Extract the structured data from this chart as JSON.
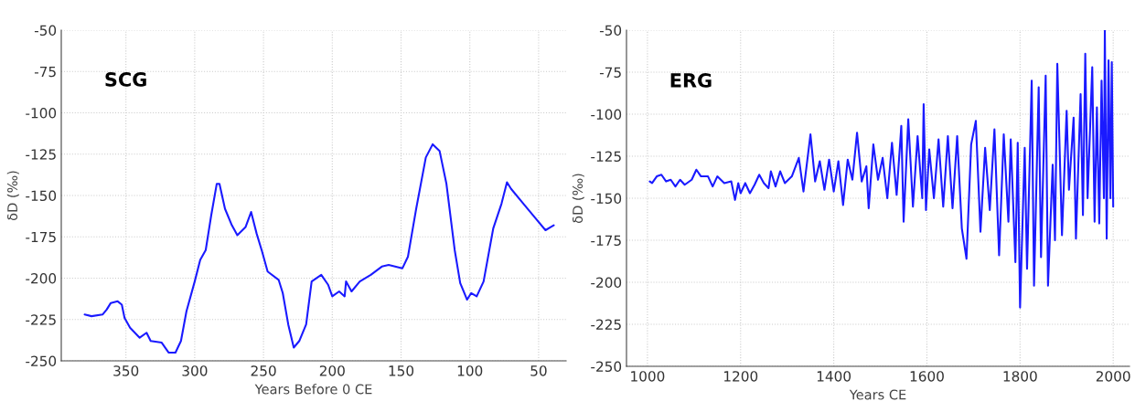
{
  "chart_data": [
    {
      "type": "line",
      "xlabel": "Years Before 0 CE",
      "ylabel": "δD (‰)",
      "annotations": [
        "SCG"
      ],
      "xlim": [
        397,
        30
      ],
      "xticks": [
        350,
        300,
        250,
        200,
        150,
        100,
        50
      ],
      "ylim": [
        -250,
        -50
      ],
      "yticks": [
        -250,
        -225,
        -200,
        -175,
        -150,
        -125,
        -100,
        -75,
        -50
      ],
      "grid": true,
      "legend": false,
      "marker": "none",
      "line_style": "solid",
      "series": [
        {
          "color": "#1a1aff",
          "x": [
            380,
            375,
            367,
            364,
            361,
            356,
            353,
            351,
            347,
            340,
            335,
            332,
            324,
            319,
            314,
            310,
            306,
            300,
            296,
            292,
            288,
            284,
            282,
            278,
            273,
            269,
            263,
            259,
            255,
            251,
            247,
            239,
            236,
            232,
            228,
            224,
            219,
            215,
            208,
            203,
            200,
            195,
            191,
            190,
            186,
            180,
            172,
            164,
            159,
            149,
            145,
            139,
            132,
            127,
            122,
            117,
            111,
            107,
            102,
            99,
            95,
            90,
            83,
            77,
            73,
            70,
            61,
            52,
            45,
            41,
            39
          ],
          "values": [
            -222,
            -223,
            -222,
            -219,
            -215,
            -214,
            -216,
            -224,
            -230,
            -236,
            -233,
            -238,
            -239,
            -245,
            -245,
            -238,
            -220,
            -202,
            -189,
            -183,
            -162,
            -143,
            -143,
            -158,
            -168,
            -174,
            -169,
            -160,
            -173,
            -184,
            -196,
            -201,
            -209,
            -228,
            -242,
            -238,
            -228,
            -202,
            -198,
            -204,
            -211,
            -208,
            -211,
            -202,
            -208,
            -202,
            -198,
            -193,
            -192,
            -194,
            -187,
            -158,
            -127,
            -119,
            -123,
            -143,
            -183,
            -203,
            -213,
            -209,
            -211,
            -202,
            -170,
            -155,
            -142,
            -146,
            -155,
            -164,
            -171,
            -169,
            -168
          ]
        }
      ]
    },
    {
      "type": "line",
      "xlabel": "Years CE",
      "ylabel": "δD (‰)",
      "annotations": [
        "ERG"
      ],
      "xlim": [
        955,
        2035
      ],
      "xticks": [
        1000,
        1200,
        1400,
        1600,
        1800,
        2000
      ],
      "ylim": [
        -250,
        -50
      ],
      "yticks": [
        -250,
        -225,
        -200,
        -175,
        -150,
        -125,
        -100,
        -75,
        -50
      ],
      "grid": true,
      "legend": false,
      "marker": "none",
      "line_style": "solid",
      "series": [
        {
          "color": "#1a1aff",
          "x": [
            1005,
            1010,
            1020,
            1030,
            1040,
            1050,
            1060,
            1070,
            1080,
            1095,
            1105,
            1115,
            1130,
            1140,
            1150,
            1165,
            1180,
            1188,
            1195,
            1200,
            1210,
            1220,
            1230,
            1240,
            1250,
            1260,
            1265,
            1275,
            1285,
            1295,
            1310,
            1325,
            1335,
            1350,
            1360,
            1370,
            1380,
            1390,
            1400,
            1410,
            1420,
            1430,
            1440,
            1450,
            1460,
            1470,
            1475,
            1485,
            1495,
            1505,
            1515,
            1525,
            1535,
            1545,
            1550,
            1560,
            1570,
            1580,
            1590,
            1593,
            1598,
            1605,
            1615,
            1625,
            1635,
            1645,
            1655,
            1665,
            1675,
            1685,
            1695,
            1705,
            1715,
            1725,
            1735,
            1745,
            1755,
            1765,
            1775,
            1780,
            1790,
            1795,
            1800,
            1810,
            1815,
            1825,
            1830,
            1840,
            1845,
            1855,
            1860,
            1870,
            1875,
            1880,
            1890,
            1900,
            1905,
            1915,
            1920,
            1930,
            1935,
            1940,
            1945,
            1955,
            1960,
            1965,
            1970,
            1975,
            1980,
            1982,
            1986,
            1990,
            1994,
            1997,
            2000
          ],
          "values": [
            -140,
            -141,
            -137,
            -136,
            -140,
            -139,
            -143,
            -139,
            -142,
            -139,
            -133,
            -137,
            -137,
            -143,
            -137,
            -141,
            -140,
            -151,
            -141,
            -147,
            -141,
            -147,
            -142,
            -136,
            -141,
            -144,
            -134,
            -143,
            -134,
            -141,
            -137,
            -126,
            -146,
            -112,
            -140,
            -128,
            -145,
            -127,
            -146,
            -128,
            -154,
            -127,
            -139,
            -111,
            -140,
            -131,
            -156,
            -118,
            -139,
            -126,
            -150,
            -117,
            -148,
            -107,
            -164,
            -103,
            -155,
            -113,
            -150,
            -94,
            -157,
            -121,
            -150,
            -115,
            -155,
            -113,
            -156,
            -113,
            -168,
            -186,
            -118,
            -104,
            -170,
            -120,
            -157,
            -109,
            -184,
            -112,
            -164,
            -115,
            -188,
            -117,
            -215,
            -120,
            -192,
            -80,
            -202,
            -84,
            -185,
            -77,
            -202,
            -130,
            -175,
            -70,
            -172,
            -98,
            -145,
            -102,
            -174,
            -88,
            -160,
            -64,
            -150,
            -72,
            -164,
            -96,
            -165,
            -80,
            -150,
            -50,
            -174,
            -68,
            -150,
            -69,
            -155
          ]
        }
      ]
    }
  ]
}
